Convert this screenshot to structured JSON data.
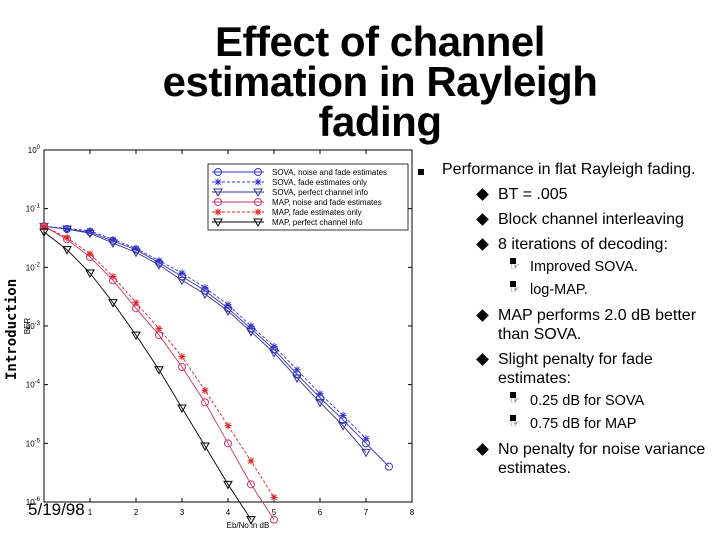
{
  "title": "Effect of channel estimation in Rayleigh fading",
  "side_label": "Introduction",
  "date": "5/19/98",
  "bullets": {
    "main": "Performance in flat Rayleigh fading.",
    "items": [
      {
        "text": "BT = .005",
        "sub": []
      },
      {
        "text": "Block channel interleaving",
        "sub": []
      },
      {
        "text": "8 iterations of decoding:",
        "sub": [
          "Improved SOVA.",
          "log-MAP."
        ]
      },
      {
        "text": "MAP performs 2.0 dB better than SOVA.",
        "sub": []
      },
      {
        "text": "Slight penalty for fade estimates:",
        "sub": [
          "0.25 dB for SOVA",
          "0.75 dB for MAP"
        ]
      },
      {
        "text": "No penalty for noise variance estimates.",
        "sub": []
      }
    ]
  },
  "chart_data": {
    "type": "line",
    "xlabel": "Eb/No in dB",
    "ylabel": "BER",
    "xlim": [
      0,
      8
    ],
    "ylim": [
      1e-06,
      1
    ],
    "yscale": "log",
    "xticks": [
      1,
      2,
      3,
      4,
      5,
      6,
      7,
      8
    ],
    "yticks": [
      "10^0",
      "10^-1",
      "10^-2",
      "10^-3",
      "10^-4",
      "10^-5",
      "10^-6"
    ],
    "legend_position": "top-right",
    "series": [
      {
        "name": "SOVA, noise and fade estimates",
        "color": "#3333cc",
        "marker": "circle",
        "x": [
          0,
          0.5,
          1,
          1.5,
          2,
          2.5,
          3,
          3.5,
          4,
          4.5,
          5,
          5.5,
          6,
          6.5,
          7,
          7.5
        ],
        "y": [
          0.05,
          0.045,
          0.04,
          0.028,
          0.02,
          0.012,
          0.007,
          0.004,
          0.002,
          0.0009,
          0.0004,
          0.00015,
          6e-05,
          2.5e-05,
          1e-05,
          4e-06
        ]
      },
      {
        "name": "SOVA, fade estimates only",
        "color": "#3333cc",
        "marker": "star",
        "x": [
          0,
          0.5,
          1,
          1.5,
          2,
          2.5,
          3,
          3.5,
          4,
          4.5,
          5,
          5.5,
          6,
          6.5,
          7
        ],
        "y": [
          0.05,
          0.046,
          0.042,
          0.03,
          0.021,
          0.013,
          0.008,
          0.0045,
          0.0023,
          0.001,
          0.00045,
          0.00018,
          7e-05,
          3e-05,
          1.2e-05
        ]
      },
      {
        "name": "SOVA, perfect channel info",
        "color": "#333399",
        "marker": "triangle",
        "x": [
          0,
          0.5,
          1,
          1.5,
          2,
          2.5,
          3,
          3.5,
          4,
          4.5,
          5,
          5.5,
          6,
          6.5,
          7
        ],
        "y": [
          0.05,
          0.045,
          0.038,
          0.026,
          0.018,
          0.011,
          0.006,
          0.0035,
          0.0018,
          0.0008,
          0.00035,
          0.00013,
          5e-05,
          2e-05,
          7e-06
        ]
      },
      {
        "name": "MAP, noise and fade estimates",
        "color": "#cc3366",
        "marker": "circle",
        "x": [
          0,
          0.5,
          1,
          1.5,
          2,
          2.5,
          3,
          3.5,
          4,
          4.5,
          5
        ],
        "y": [
          0.05,
          0.03,
          0.015,
          0.006,
          0.002,
          0.0007,
          0.0002,
          5e-05,
          1e-05,
          2e-06,
          5e-07
        ]
      },
      {
        "name": "MAP, fade estimates only",
        "color": "#dd2222",
        "marker": "star",
        "x": [
          0,
          0.5,
          1,
          1.5,
          2,
          2.5,
          3,
          3.5,
          4,
          4.5,
          5
        ],
        "y": [
          0.05,
          0.032,
          0.017,
          0.007,
          0.0025,
          0.0009,
          0.0003,
          8e-05,
          2e-05,
          5e-06,
          1.2e-06
        ]
      },
      {
        "name": "MAP, perfect channel info",
        "color": "#000000",
        "marker": "triangle",
        "x": [
          0,
          0.5,
          1,
          1.5,
          2,
          2.5,
          3,
          3.5,
          4,
          4.5
        ],
        "y": [
          0.04,
          0.02,
          0.008,
          0.0025,
          0.0007,
          0.00018,
          4e-05,
          9e-06,
          2e-06,
          5e-07
        ]
      }
    ]
  }
}
